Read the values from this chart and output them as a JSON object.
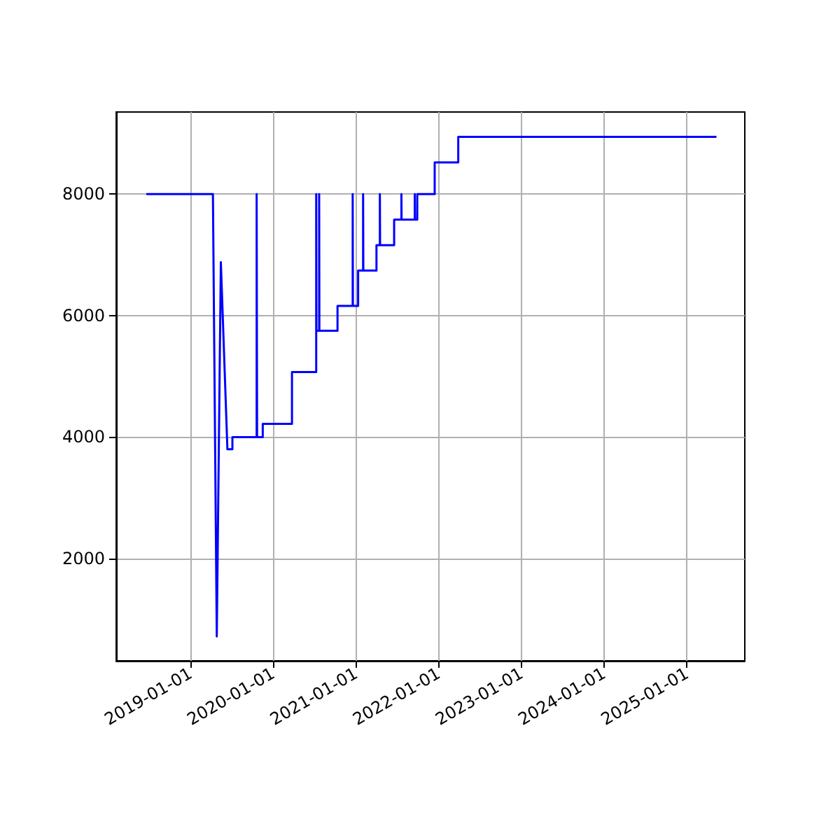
{
  "chart_data": {
    "type": "line",
    "x": [
      "2018-06-20",
      "2019-04-10",
      "2019-04-27",
      "2019-05-15",
      "2019-06-13",
      "2019-07-05",
      "2019-07-05",
      "2019-10-20",
      "2019-10-20",
      "2019-10-22",
      "2019-10-22",
      "2019-11-16",
      "2019-11-16",
      "2020-03-24",
      "2020-03-24",
      "2020-07-09",
      "2020-07-09",
      "2020-07-10",
      "2020-07-22",
      "2020-07-22",
      "2020-07-23",
      "2020-10-11",
      "2020-10-11",
      "2020-12-17",
      "2020-12-17",
      "2020-12-18",
      "2021-01-10",
      "2021-01-10",
      "2021-02-01",
      "2021-02-01",
      "2021-02-02",
      "2021-04-01",
      "2021-04-01",
      "2021-04-16",
      "2021-04-16",
      "2021-04-17",
      "2021-06-18",
      "2021-06-18",
      "2021-07-20",
      "2021-07-20",
      "2021-07-21",
      "2021-09-17",
      "2021-09-17",
      "2021-09-18",
      "2021-09-28",
      "2021-09-28",
      "2021-12-14",
      "2021-12-14",
      "2022-03-28",
      "2022-03-28",
      "2025-05-11"
    ],
    "values": [
      8000,
      8000,
      720,
      6880,
      3800,
      3800,
      4000,
      4000,
      8000,
      8000,
      4000,
      4000,
      4220,
      4220,
      5070,
      5070,
      8000,
      5750,
      5750,
      8000,
      5750,
      5750,
      6160,
      6160,
      8000,
      6160,
      6160,
      6740,
      6740,
      8000,
      6740,
      6740,
      7160,
      7160,
      8000,
      7160,
      7160,
      7580,
      7580,
      8000,
      7580,
      7580,
      8000,
      7580,
      7580,
      8000,
      8000,
      8520,
      8520,
      8940,
      8940
    ],
    "color": "#0000ff",
    "xlim": [
      "2018-02-07",
      "2025-09-13"
    ],
    "xticks": [
      "2019-01-01",
      "2020-01-01",
      "2021-01-01",
      "2022-01-01",
      "2023-01-01",
      "2024-01-01",
      "2025-01-01"
    ],
    "ylim": [
      320,
      9350
    ],
    "yticks": [
      2000,
      4000,
      6000,
      8000
    ],
    "grid": true,
    "marker": "none"
  }
}
